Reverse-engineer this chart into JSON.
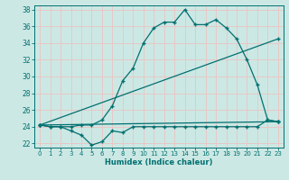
{
  "title": "",
  "xlabel": "Humidex (Indice chaleur)",
  "ylabel": "",
  "bg_color": "#cce8e4",
  "grid_color": "#e8c8c8",
  "line_color": "#007070",
  "xlim": [
    -0.5,
    23.5
  ],
  "ylim": [
    21.5,
    38.5
  ],
  "yticks": [
    22,
    24,
    26,
    28,
    30,
    32,
    34,
    36,
    38
  ],
  "xticks": [
    0,
    1,
    2,
    3,
    4,
    5,
    6,
    7,
    8,
    9,
    10,
    11,
    12,
    13,
    14,
    15,
    16,
    17,
    18,
    19,
    20,
    21,
    22,
    23
  ],
  "line1_x": [
    0,
    1,
    2,
    3,
    4,
    5,
    6,
    7,
    8,
    9,
    10,
    11,
    12,
    13,
    14,
    15,
    16,
    17,
    18,
    19,
    20,
    21,
    22,
    23
  ],
  "line1_y": [
    24.2,
    24.0,
    24.0,
    23.5,
    23.0,
    21.8,
    22.2,
    23.5,
    23.3,
    24.0,
    24.0,
    24.0,
    24.0,
    24.0,
    24.0,
    24.0,
    24.0,
    24.0,
    24.0,
    24.0,
    24.0,
    24.0,
    24.8,
    24.6
  ],
  "line2_x": [
    0,
    1,
    2,
    3,
    4,
    5,
    6,
    7,
    8,
    9,
    10,
    11,
    12,
    13,
    14,
    15,
    16,
    17,
    18,
    19,
    20,
    21,
    22,
    23
  ],
  "line2_y": [
    24.2,
    24.0,
    24.0,
    24.0,
    24.2,
    24.2,
    24.8,
    26.5,
    29.5,
    31.0,
    34.0,
    35.8,
    36.5,
    36.5,
    38.0,
    36.2,
    36.2,
    36.8,
    35.8,
    34.5,
    32.0,
    29.0,
    24.8,
    24.6
  ],
  "line3_x": [
    0,
    23
  ],
  "line3_y": [
    24.2,
    34.5
  ],
  "line4_x": [
    0,
    23
  ],
  "line4_y": [
    24.2,
    24.6
  ]
}
